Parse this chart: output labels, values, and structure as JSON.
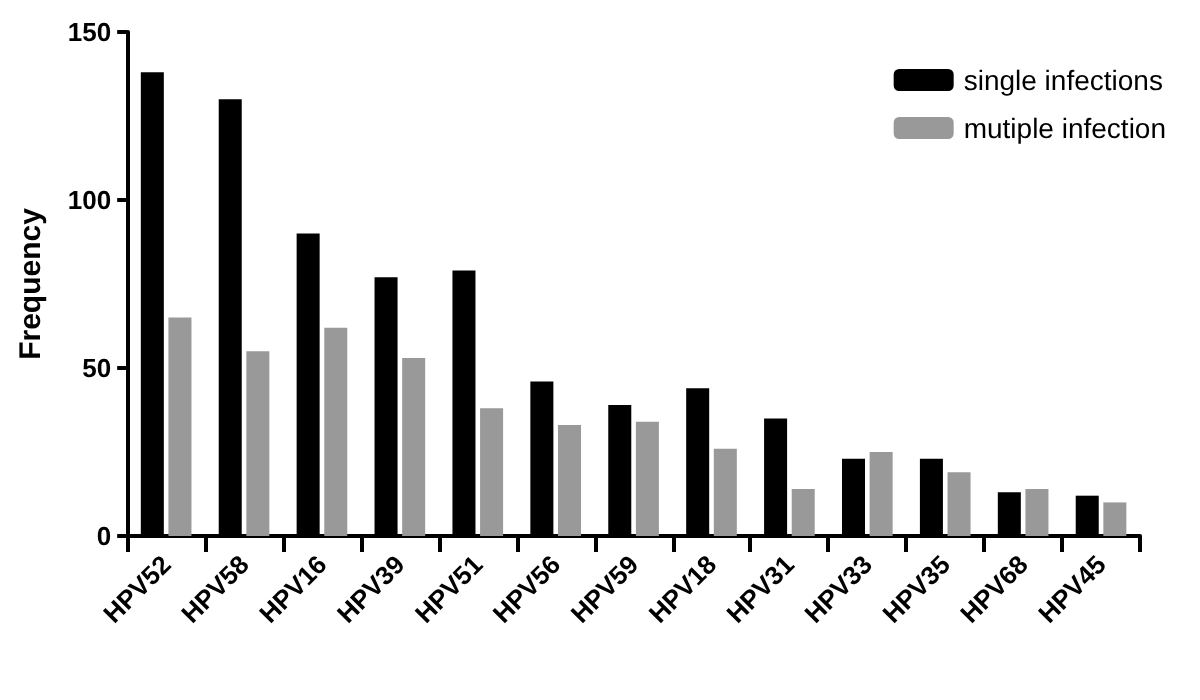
{
  "chart_data": {
    "type": "bar",
    "ylabel": "Frequency",
    "categories": [
      "HPV52",
      "HPV58",
      "HPV16",
      "HPV39",
      "HPV51",
      "HPV56",
      "HPV59",
      "HPV18",
      "HPV31",
      "HPV33",
      "HPV35",
      "HPV68",
      "HPV45"
    ],
    "series": [
      {
        "name": "single infections",
        "color": "#000000",
        "values": [
          138,
          130,
          90,
          77,
          79,
          46,
          39,
          44,
          35,
          23,
          23,
          13,
          12
        ]
      },
      {
        "name": "mutiple infection",
        "color": "#999999",
        "values": [
          65,
          55,
          62,
          53,
          38,
          33,
          34,
          26,
          14,
          25,
          19,
          14,
          10
        ]
      }
    ],
    "ylim": [
      0,
      150
    ],
    "yticks": [
      0,
      50,
      100,
      150
    ],
    "grid": false,
    "legend": "top right"
  }
}
